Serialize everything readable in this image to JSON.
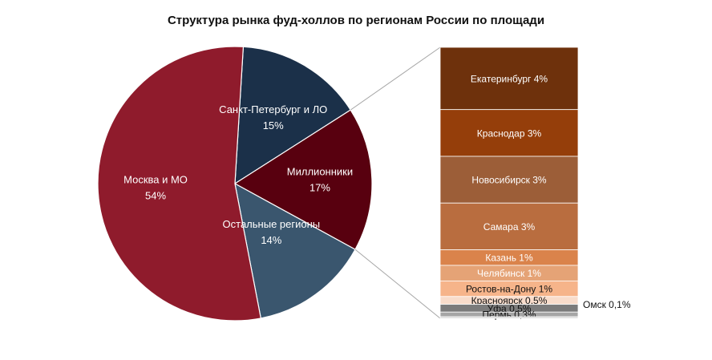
{
  "chart_data": {
    "type": "pie",
    "title": "Структура рынка фуд-холлов по регионам России по площади",
    "slices": [
      {
        "label": "Санкт-Петербург и ЛО",
        "value_label": "15%",
        "value": 15,
        "color": "#1b3049"
      },
      {
        "label": "Миллионники",
        "value_label": "17%",
        "value": 17,
        "color": "#58000f"
      },
      {
        "label": "Остальные регионы",
        "value_label": "14%",
        "value": 14,
        "color": "#3a566e"
      },
      {
        "label": "Москва и МО",
        "value_label": "54%",
        "value": 54,
        "color": "#8f1b2c"
      }
    ],
    "breakdown_of": "Миллионники",
    "breakdown": [
      {
        "label": "Екатеринбург 4%",
        "value": 4,
        "color": "#6e310c",
        "label_color": "#ffffff"
      },
      {
        "label": "Краснодар 3%",
        "value": 3,
        "color": "#953e0a",
        "label_color": "#ffffff"
      },
      {
        "label": "Новосибирск 3%",
        "value": 3,
        "color": "#9c5e38",
        "label_color": "#ffffff"
      },
      {
        "label": "Самара 3%",
        "value": 3,
        "color": "#b96d3f",
        "label_color": "#ffffff"
      },
      {
        "label": "Казань 1%",
        "value": 1,
        "color": "#da834b",
        "label_color": "#ffffff"
      },
      {
        "label": "Челябинск 1%",
        "value": 1,
        "color": "#e5a376",
        "label_color": "#ffffff"
      },
      {
        "label": "Ростов-на-Дону 1%",
        "value": 1,
        "color": "#f6b48a",
        "label_color": "#111111"
      },
      {
        "label": "Красноярск 0,5%",
        "value": 0.5,
        "color": "#f8dccb",
        "label_color": "#111111"
      },
      {
        "label": "Уфа 0,5%",
        "value": 0.5,
        "color": "#7b7b7b",
        "label_color": "#111111"
      },
      {
        "label": "Пермь 0,3%",
        "value": 0.3,
        "color": "#a6a6a6",
        "label_color": "#111111"
      },
      {
        "label": "Омск 0,1%",
        "value": 0.1,
        "color": "#cfcfcf",
        "label_color": "#111111"
      }
    ]
  }
}
